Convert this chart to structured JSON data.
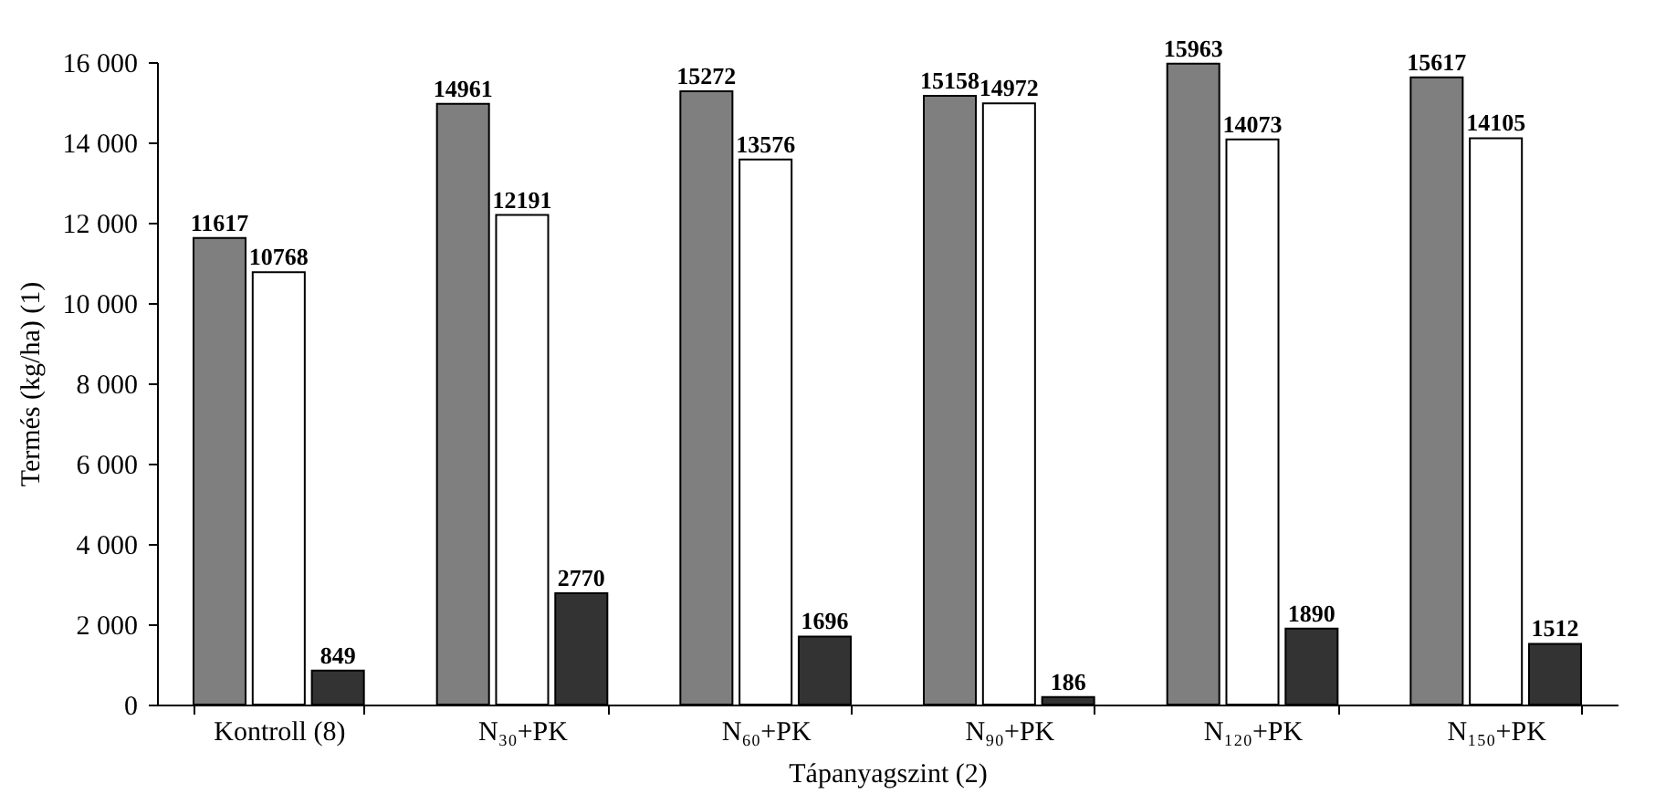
{
  "chart_data": {
    "type": "bar",
    "xlabel": "Tápanyagszint (2)",
    "ylabel": "Termés (kg/ha) (1)",
    "categories": [
      "Kontroll (8)",
      "N₃₀+PK",
      "N₆₀+PK",
      "N₉₀+PK",
      "N₁₂₀+PK",
      "N₁₅₀+PK"
    ],
    "series": [
      {
        "color": "#7f7f7f",
        "values": [
          11617,
          14961,
          15272,
          15158,
          15963,
          15617
        ]
      },
      {
        "color": "#ffffff",
        "values": [
          10768,
          12191,
          13576,
          14972,
          14073,
          14105
        ]
      },
      {
        "color": "#333333",
        "values": [
          849,
          2770,
          1696,
          186,
          1890,
          1512
        ]
      }
    ],
    "ylim": [
      0,
      16000
    ],
    "yticks": [
      0,
      {
        "value": 2000,
        "label": "2 000"
      },
      {
        "value": 4000,
        "label": "4 000"
      },
      {
        "value": 6000,
        "label": "6 000"
      },
      {
        "value": 8000,
        "label": "8 000"
      },
      {
        "value": 10000,
        "label": "10 000"
      },
      {
        "value": 12000,
        "label": "12 000"
      },
      {
        "value": 14000,
        "label": "14 000"
      },
      {
        "value": 16000,
        "label": "16 000"
      }
    ],
    "data_labels": true
  }
}
